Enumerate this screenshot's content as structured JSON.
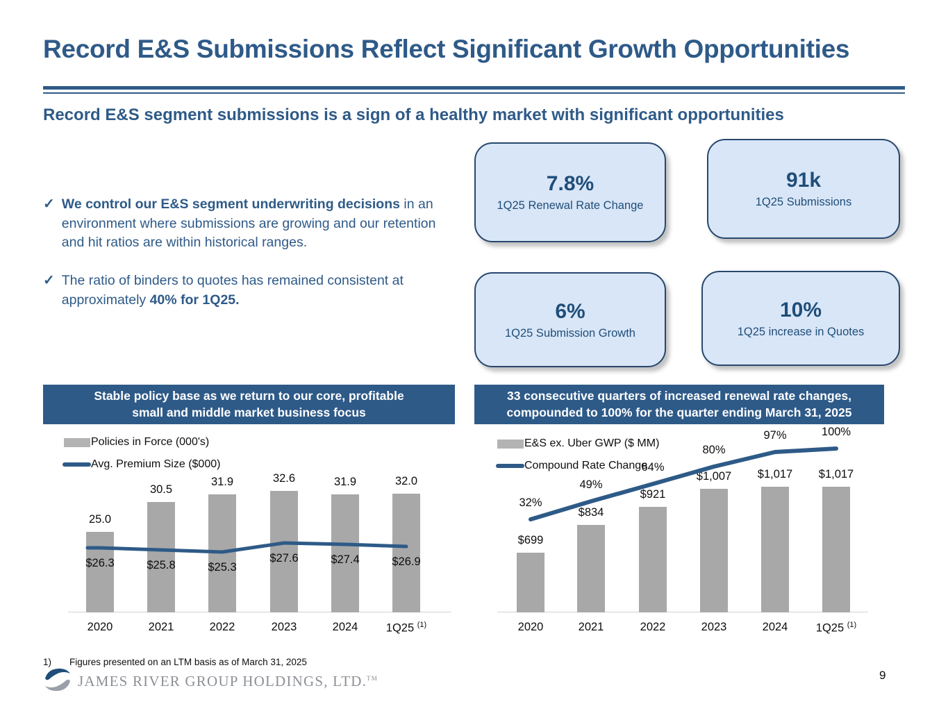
{
  "slide": {
    "title": "Record E&S Submissions Reflect Significant Growth Opportunities",
    "subtitle": "Record E&S segment submissions is a sign of a healthy market with significant opportunities",
    "page_number": "9",
    "footnote_marker": "1)",
    "footnote_text": "Figures presented on an LTM basis as of March 31, 2025",
    "logo_text": "JAMES RIVER GROUP HOLDINGS, LTD.",
    "logo_trademark": "TM"
  },
  "bullets": [
    {
      "check": "✓",
      "segments": [
        {
          "text": "We control our E&S segment underwriting decisions",
          "bold": true
        },
        {
          "text": " in an environment where submissions are growing and our retention and hit ratios are within historical ranges.",
          "bold": false
        }
      ]
    },
    {
      "check": "✓",
      "segments": [
        {
          "text": "The ratio of binders to quotes has remained consistent at approximately ",
          "bold": false
        },
        {
          "text": "40% for 1Q25.",
          "bold": true
        }
      ]
    }
  ],
  "stat_boxes": [
    {
      "value": "7.8%",
      "label": "1Q25 Renewal Rate Change"
    },
    {
      "value": "91k",
      "label": "1Q25 Submissions"
    },
    {
      "value": "6%",
      "label": "1Q25 Submission Growth"
    },
    {
      "value": "10%",
      "label": "1Q25 increase in Quotes"
    }
  ],
  "colors": {
    "accent_blue": "#2e5a88",
    "dark_blue": "#1f4e79",
    "box_fill": "#d9e6f7",
    "bar_gray": "#a8a8a8",
    "line_blue": "#2e5a87",
    "header_bg": "#2e5a88"
  },
  "chart_data": [
    {
      "type": "bar+line",
      "title_lines": [
        "Stable policy base as we return to our core, profitable",
        "small and middle market business focus"
      ],
      "categories": [
        "2020",
        "2021",
        "2022",
        "2023",
        "2024",
        "1Q25"
      ],
      "superscript": {
        "index": 5,
        "text": "(1)"
      },
      "legend_position": "top-left",
      "grid": false,
      "series": [
        {
          "name": "Policies in Force (000's)",
          "type": "bar",
          "values": [
            25.0,
            30.5,
            31.9,
            32.6,
            31.9,
            32.0
          ],
          "labels": [
            "25.0",
            "30.5",
            "31.9",
            "32.6",
            "31.9",
            "32.0"
          ]
        },
        {
          "name": "Avg. Premium Size ($000)",
          "type": "line",
          "values": [
            26.3,
            25.8,
            25.3,
            27.6,
            27.4,
            26.9
          ],
          "labels": [
            "$26.3",
            "$25.8",
            "$25.3",
            "$27.6",
            "$27.4",
            "$26.9"
          ]
        }
      ]
    },
    {
      "type": "bar+line",
      "title_lines": [
        "33 consecutive quarters of increased renewal rate changes,",
        "compounded to 100% for the quarter ending March 31, 2025"
      ],
      "categories": [
        "2020",
        "2021",
        "2022",
        "2023",
        "2024",
        "1Q25"
      ],
      "superscript": {
        "index": 5,
        "text": "(1)"
      },
      "legend_position": "top-left",
      "grid": false,
      "series": [
        {
          "name": "E&S ex. Uber GWP ($ MM)",
          "type": "bar",
          "values": [
            699,
            834,
            921,
            1007,
            1017,
            1017
          ],
          "labels": [
            "$699",
            "$834",
            "$921",
            "$1,007",
            "$1,017",
            "$1,017"
          ]
        },
        {
          "name": "Compound Rate Change",
          "type": "line",
          "values": [
            32,
            49,
            64,
            80,
            97,
            100
          ],
          "labels": [
            "32%",
            "49%",
            "64%",
            "80%",
            "97%",
            "100%"
          ]
        }
      ]
    }
  ]
}
